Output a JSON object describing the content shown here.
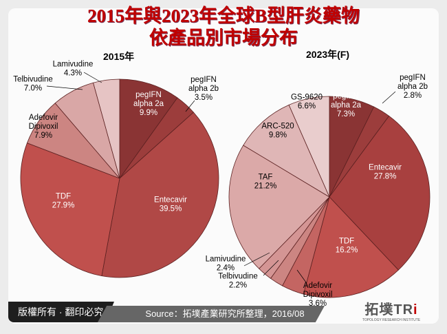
{
  "title_line1": "2015年與2023年全球B型肝炎藥物",
  "title_line2": "依產品別市場分布",
  "footer": {
    "copyright": "版權所有 · 翻印必究",
    "source": "Source：拓墣產業研究所整理，2016/08",
    "logo_text": "拓墣TRi",
    "logo_subtext": "TOPOLOGY RESEARCH INSTITUTE"
  },
  "chart_data": [
    {
      "type": "pie",
      "title": "2015年",
      "unit": "%",
      "slices": [
        {
          "label": "pegIFN alpha 2a",
          "value": 9.9,
          "color": "#8a3434"
        },
        {
          "label": "pegIFN alpha 2b",
          "value": 3.5,
          "color": "#9c3d3c"
        },
        {
          "label": "Entecavir",
          "value": 39.5,
          "color": "#b04846"
        },
        {
          "label": "TDF",
          "value": 27.9,
          "color": "#c0504d"
        },
        {
          "label": "Adefovir Dipivoxil",
          "value": 7.9,
          "color": "#cc8582"
        },
        {
          "label": "Telbivudine",
          "value": 7.0,
          "color": "#d9a7a6"
        },
        {
          "label": "Lamivudine",
          "value": 4.3,
          "color": "#e6c4c4"
        }
      ]
    },
    {
      "type": "pie",
      "title": "2023年(F)",
      "unit": "%",
      "slices": [
        {
          "label": "pegIFN alpha 2a",
          "value": 7.3,
          "color": "#8a3434"
        },
        {
          "label": "pegIFN alpha 2b",
          "value": 2.8,
          "color": "#9c3d3c"
        },
        {
          "label": "Entecavir",
          "value": 27.8,
          "color": "#a8403f"
        },
        {
          "label": "TDF",
          "value": 16.2,
          "color": "#c0504d"
        },
        {
          "label": "Adefovir Dipivoxil",
          "value": 3.6,
          "color": "#c46562"
        },
        {
          "label": "Telbivudine",
          "value": 2.2,
          "color": "#cc8582"
        },
        {
          "label": "Lamivudine",
          "value": 2.4,
          "color": "#d49594"
        },
        {
          "label": "TAF",
          "value": 21.2,
          "color": "#dba9a8"
        },
        {
          "label": "ARC-520",
          "value": 9.8,
          "color": "#dfb6b6"
        },
        {
          "label": "GS-9620",
          "value": 6.6,
          "color": "#e9cdcd"
        }
      ]
    }
  ]
}
